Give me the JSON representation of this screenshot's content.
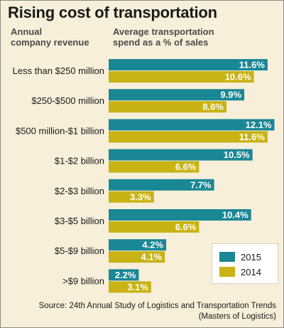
{
  "title": "Rising cost of transportation",
  "column_headers": {
    "left": [
      "Annual",
      "company revenue"
    ],
    "right": [
      "Average transportation",
      "spend as a % of sales"
    ]
  },
  "legend": {
    "items": [
      {
        "label": "2015",
        "color": "#1a8795"
      },
      {
        "label": "2014",
        "color": "#c8b214"
      }
    ]
  },
  "source": [
    "Source: 24th Annual Study of Logistics and Transportation Trends",
    "(Masters of Logistics)"
  ],
  "chart_data": {
    "type": "bar",
    "orientation": "horizontal",
    "title": "Rising cost of transportation",
    "categories": [
      "Less than $250 million",
      "$250-$500 million",
      "$500 million-$1 billion",
      "$1-$2 billion",
      "$2-$3 billion",
      "$3-$5 billion",
      "$5-$9 billion",
      ">$9 billion"
    ],
    "series": [
      {
        "name": "2015",
        "color": "#1a8795",
        "values": [
          11.6,
          9.9,
          12.1,
          10.5,
          7.7,
          10.4,
          4.2,
          2.2
        ],
        "labels": [
          "11.6%",
          "9.9%",
          "12.1%",
          "10.5%",
          "7.7%",
          "10.4%",
          "4.2%",
          "2.2%"
        ]
      },
      {
        "name": "2014",
        "color": "#c8b214",
        "values": [
          10.6,
          8.6,
          11.6,
          6.6,
          3.3,
          6.6,
          4.1,
          3.1
        ],
        "labels": [
          "10.6%",
          "8.6%",
          "11.6%",
          "6.6%",
          "3.3%",
          "6.6%",
          "4.1%",
          "3.1%"
        ]
      }
    ],
    "xlabel": "",
    "ylabel": "",
    "legend_position": "bottom-right",
    "grid": false
  }
}
